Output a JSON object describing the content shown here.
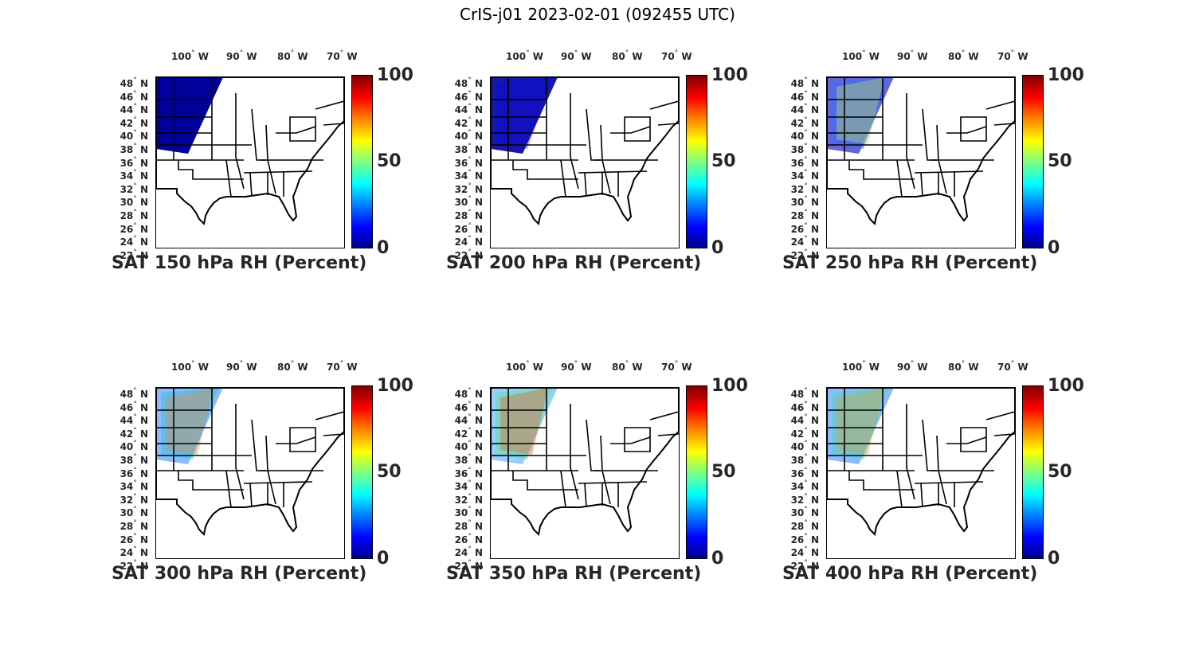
{
  "title": "CrIS-j01 2023-02-01 (092455 UTC)",
  "lon_labels": [
    "100",
    "90",
    "80",
    "70"
  ],
  "lon_hemi": "W",
  "lat_labels": [
    "48",
    "46",
    "44",
    "42",
    "40",
    "38",
    "36",
    "34",
    "32",
    "30",
    "28",
    "26",
    "24",
    "22"
  ],
  "lat_hemi": "N",
  "colorbar": {
    "ticks": [
      "100",
      "50",
      "0"
    ],
    "min": 0,
    "max": 100,
    "colormap": "jet"
  },
  "panels": [
    {
      "caption": "SAT 150 hPa RH (Percent)",
      "data_fill": "very low (~0-10)"
    },
    {
      "caption": "SAT 200 hPa RH (Percent)",
      "data_fill": "low (~0-20)"
    },
    {
      "caption": "SAT 250 hPa RH (Percent)",
      "data_fill": "low-moderate (~0-60)"
    },
    {
      "caption": "SAT 300 hPa RH (Percent)",
      "data_fill": "moderate (~20-80)"
    },
    {
      "caption": "SAT 350 hPa RH (Percent)",
      "data_fill": "moderate-high (~30-90)"
    },
    {
      "caption": "SAT 400 hPa RH (Percent)",
      "data_fill": "moderate (~20-80)"
    }
  ],
  "colors": {
    "low": "#00008f",
    "mid": "#00ffff",
    "high": "#ff0000"
  }
}
